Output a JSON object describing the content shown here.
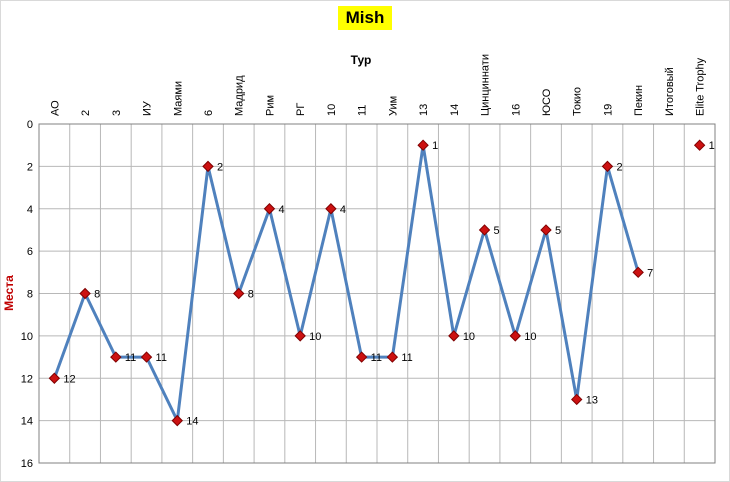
{
  "chart_data": {
    "type": "line",
    "title": "Mish",
    "xlabel": "Тур",
    "ylabel": "Места",
    "categories": [
      "АО",
      "2",
      "3",
      "ИУ",
      "Маями",
      "6",
      "Мадрид",
      "Рим",
      "РГ",
      "10",
      "11",
      "Уим",
      "13",
      "14",
      "Цинциннати",
      "16",
      "ЮСО",
      "Токио",
      "19",
      "Пекин",
      "Итоговый",
      "Elite Trophy"
    ],
    "values": [
      12,
      8,
      11,
      11,
      14,
      2,
      8,
      4,
      10,
      4,
      11,
      11,
      1,
      10,
      5,
      10,
      5,
      13,
      2,
      7,
      null,
      1
    ],
    "ylim": [
      0,
      16
    ],
    "y_ticks": [
      0,
      2,
      4,
      6,
      8,
      10,
      12,
      14,
      16
    ],
    "y_axis_reversed_note": "rank 1 at top, 16 at bottom; axis drawn top-to-bottom increasing",
    "grid": "on",
    "legend": "none",
    "colors": {
      "line": "#4f81bd",
      "marker": "#cc1111",
      "marker_border": "#7f0000",
      "grid": "#b8b8b8",
      "plot_border": "#808080",
      "title_bg": "#ffff00",
      "ylabel_color": "#c00000"
    }
  }
}
